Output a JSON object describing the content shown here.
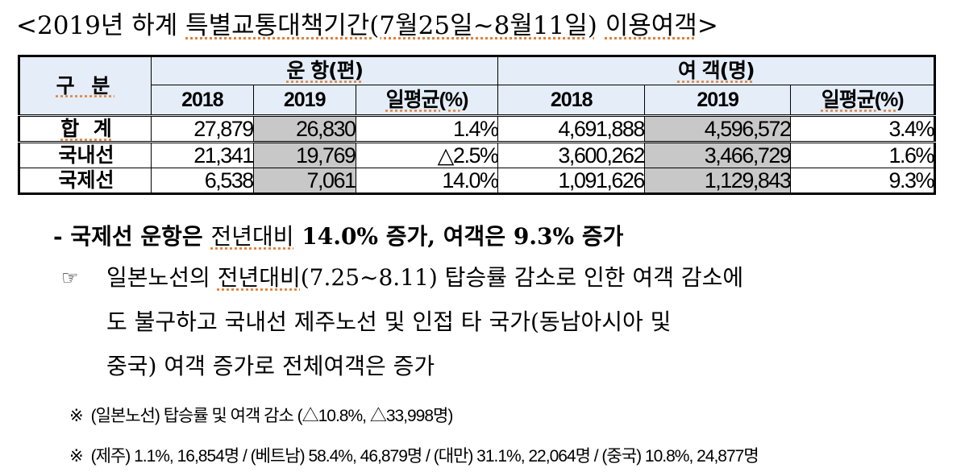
{
  "title": {
    "prefix": "<2019년 하계 ",
    "highlighted": "특별교통대책기간(7월25일~8월11일)",
    "space": " ",
    "highlighted2": "이용여객",
    "suffix": ">"
  },
  "table": {
    "corner_label": "구 분",
    "groups": [
      {
        "label": "운 항(편)"
      },
      {
        "label": "여 객(명)"
      }
    ],
    "sub_headers": [
      "2018",
      "2019",
      "일평균(%)",
      "2018",
      "2019",
      "일평균(%)"
    ],
    "rows": [
      {
        "label": "합  계",
        "flights_2018": "27,879",
        "flights_2019": "26,830",
        "flights_avg": "1.4%",
        "pax_2018": "4,691,888",
        "pax_2019": "4,596,572",
        "pax_avg": "3.4%"
      },
      {
        "label": "국내선",
        "flights_2018": "21,341",
        "flights_2019": "19,769",
        "flights_avg": "△2.5%",
        "pax_2018": "3,600,262",
        "pax_2019": "3,466,729",
        "pax_avg": "1.6%"
      },
      {
        "label": "국제선",
        "flights_2018": "6,538",
        "flights_2019": "7,061",
        "flights_avg": "14.0%",
        "pax_2018": "1,091,626",
        "pax_2019": "1,129,843",
        "pax_avg": "9.3%"
      }
    ],
    "colors": {
      "header_bg": "#e4edf8",
      "shade_2019": "#c8c8c8"
    }
  },
  "summary": {
    "dash": "-",
    "text_a": "국제선 운항은 ",
    "text_b": "전년대비",
    "text_c": " 14.0% 증가, 여객은 9.3% 증가"
  },
  "note": {
    "icon": "☞",
    "line1_a": "일본노선의 ",
    "line1_b": "전년대비",
    "line1_c": "(7.25~8.11) 탑승률 감소로 인한 여객 감소에",
    "line2": "도 불구하고 국내선 제주노선 및 인접 타 국가(동남아시아 및",
    "line3": "중국) 여객 증가로 전체여객은 증가"
  },
  "remarks": [
    {
      "mark": "※",
      "text": "(일본노선) 탑승률 및 여객 감소 (△10.8%, △33,998명)"
    },
    {
      "mark": "※",
      "text": "(제주) 1.1%, 16,854명 / (베트남) 58.4%, 46,879명 / (대만) 31.1%, 22,064명 / (중국) 10.8%, 24,877명"
    }
  ]
}
